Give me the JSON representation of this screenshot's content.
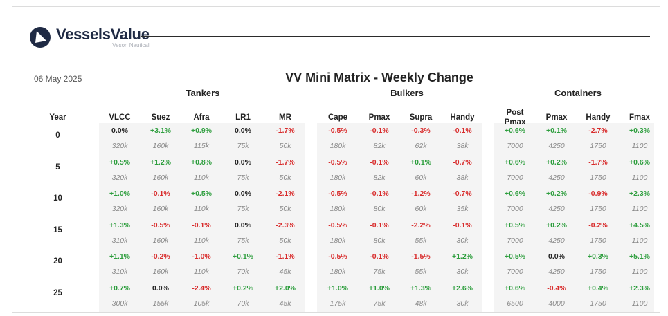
{
  "brand": {
    "name": "VesselsValue",
    "sub": "Veson Nautical"
  },
  "date": "06 May 2025",
  "title": "VV Mini Matrix - Weekly Change",
  "groups": {
    "tankers": "Tankers",
    "bulkers": "Bulkers",
    "containers": "Containers"
  },
  "year_header": "Year",
  "columns": [
    "VLCC",
    "Suez",
    "Afra",
    "LR1",
    "MR",
    "Cape",
    "Pmax",
    "Supra",
    "Handy",
    "Post\nPmax",
    "Pmax",
    "Handy",
    "Fmax"
  ],
  "colors": {
    "positive": "#2e9e3e",
    "negative": "#d82b2b",
    "neutral": "#222222",
    "size": "#8a8a8a"
  },
  "rows": [
    {
      "year": "0",
      "changes": [
        "0.0%",
        "+3.1%",
        "+0.9%",
        "0.0%",
        "-1.7%",
        "-0.5%",
        "-0.1%",
        "-0.3%",
        "-0.1%",
        "+0.6%",
        "+0.1%",
        "-2.7%",
        "+0.3%"
      ],
      "sizes": [
        "320k",
        "160k",
        "115k",
        "75k",
        "50k",
        "180k",
        "82k",
        "62k",
        "38k",
        "7000",
        "4250",
        "1750",
        "1100"
      ]
    },
    {
      "year": "5",
      "changes": [
        "+0.5%",
        "+1.2%",
        "+0.8%",
        "0.0%",
        "-1.7%",
        "-0.5%",
        "-0.1%",
        "+0.1%",
        "-0.7%",
        "+0.6%",
        "+0.2%",
        "-1.7%",
        "+0.6%"
      ],
      "sizes": [
        "320k",
        "160k",
        "110k",
        "75k",
        "50k",
        "180k",
        "82k",
        "60k",
        "38k",
        "7000",
        "4250",
        "1750",
        "1100"
      ]
    },
    {
      "year": "10",
      "changes": [
        "+1.0%",
        "-0.1%",
        "+0.5%",
        "0.0%",
        "-2.1%",
        "-0.5%",
        "-0.1%",
        "-1.2%",
        "-0.7%",
        "+0.6%",
        "+0.2%",
        "-0.9%",
        "+2.3%"
      ],
      "sizes": [
        "320k",
        "160k",
        "110k",
        "75k",
        "50k",
        "180k",
        "80k",
        "60k",
        "35k",
        "7000",
        "4250",
        "1750",
        "1100"
      ]
    },
    {
      "year": "15",
      "changes": [
        "+1.3%",
        "-0.5%",
        "-0.1%",
        "0.0%",
        "-2.3%",
        "-0.5%",
        "-0.1%",
        "-2.2%",
        "-0.1%",
        "+0.5%",
        "+0.2%",
        "-0.2%",
        "+4.5%"
      ],
      "sizes": [
        "310k",
        "160k",
        "110k",
        "75k",
        "50k",
        "180k",
        "80k",
        "55k",
        "30k",
        "7000",
        "4250",
        "1750",
        "1100"
      ]
    },
    {
      "year": "20",
      "changes": [
        "+1.1%",
        "-0.2%",
        "-1.0%",
        "+0.1%",
        "-1.1%",
        "-0.5%",
        "-0.1%",
        "-1.5%",
        "+1.2%",
        "+0.5%",
        "0.0%",
        "+0.3%",
        "+5.1%"
      ],
      "sizes": [
        "310k",
        "160k",
        "110k",
        "70k",
        "45k",
        "180k",
        "75k",
        "55k",
        "30k",
        "7000",
        "4250",
        "1750",
        "1100"
      ]
    },
    {
      "year": "25",
      "changes": [
        "+0.7%",
        "0.0%",
        "-2.4%",
        "+0.2%",
        "+2.0%",
        "+1.0%",
        "+1.0%",
        "+1.3%",
        "+2.6%",
        "+0.6%",
        "-0.4%",
        "+0.4%",
        "+2.3%"
      ],
      "sizes": [
        "300k",
        "155k",
        "105k",
        "70k",
        "45k",
        "175k",
        "75k",
        "48k",
        "30k",
        "6500",
        "4000",
        "1750",
        "1100"
      ]
    }
  ]
}
